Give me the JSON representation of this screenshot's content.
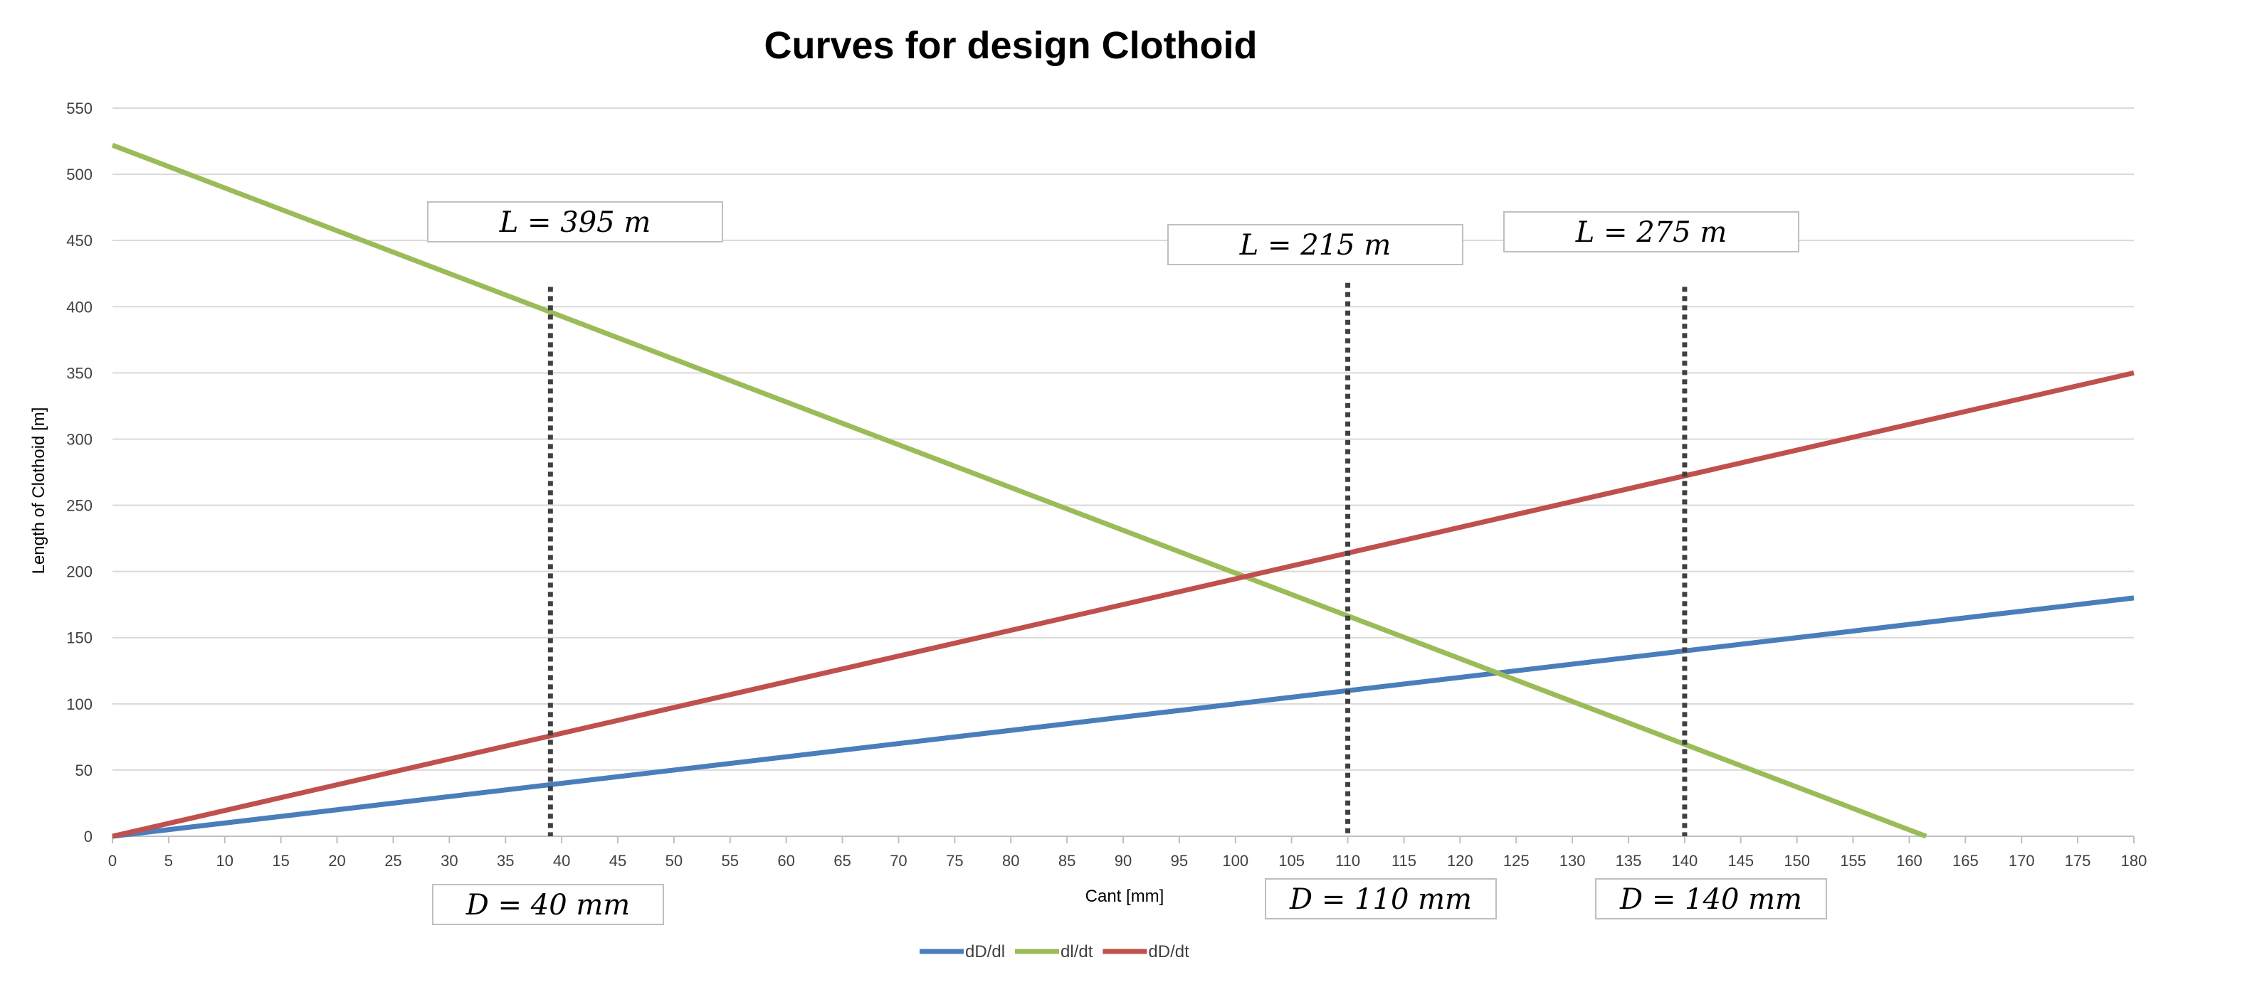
{
  "chart_data": {
    "type": "line",
    "title": "Curves for design Clothoid",
    "xlabel": "Cant [mm]",
    "ylabel": "Length of Clothoid [m]",
    "xlim": [
      0,
      180
    ],
    "ylim": [
      0,
      550
    ],
    "x_ticks": [
      0,
      5,
      10,
      15,
      20,
      25,
      30,
      35,
      40,
      45,
      50,
      55,
      60,
      65,
      70,
      75,
      80,
      85,
      90,
      95,
      100,
      105,
      110,
      115,
      120,
      125,
      130,
      135,
      140,
      145,
      150,
      155,
      160,
      165,
      170,
      175,
      180
    ],
    "y_ticks": [
      0,
      50,
      100,
      150,
      200,
      250,
      300,
      350,
      400,
      450,
      500,
      550
    ],
    "grid": true,
    "legend_position": "bottom",
    "series": [
      {
        "name": "dD/dl",
        "color": "#4a7ebb",
        "x": [
          0,
          180
        ],
        "y": [
          0,
          180
        ]
      },
      {
        "name": "dl/dt",
        "color": "#9bbb59",
        "x": [
          0,
          161.5
        ],
        "y": [
          522,
          0
        ]
      },
      {
        "name": "dD/dt",
        "color": "#c0504d",
        "x": [
          0,
          180
        ],
        "y": [
          0,
          350
        ]
      }
    ],
    "vlines": [
      {
        "x": 39,
        "y_top": 415,
        "label_top": "L = 395 m",
        "label_bottom": "D = 40 mm"
      },
      {
        "x": 110,
        "y_top": 418,
        "label_top": "L = 215 m",
        "label_bottom": "D = 110 mm"
      },
      {
        "x": 140,
        "y_top": 415,
        "label_top": "L = 275 m",
        "label_bottom": "D = 140 mm"
      }
    ]
  }
}
